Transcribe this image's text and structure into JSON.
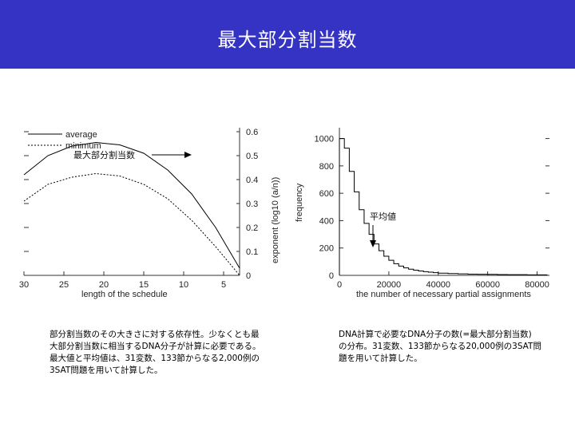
{
  "slide": {
    "title": "最大部分割当数",
    "accent_color": "#3533c3"
  },
  "left_plot": {
    "legend": [
      "average",
      "minimum"
    ],
    "annotation": "最大部分割当数",
    "xlabel": "length of the schedule",
    "ylabel": "exponent (log10 (a/n))",
    "x_ticks": [
      "30",
      "25",
      "20",
      "15",
      "10",
      "5"
    ],
    "y_ticks": [
      "0",
      "0.1",
      "0.2",
      "0.3",
      "0.4",
      "0.5",
      "0.6"
    ]
  },
  "right_plot": {
    "annotation": "平均値",
    "xlabel": "the number of necessary partial assignments",
    "ylabel": "frequency",
    "x_ticks": [
      "0",
      "20000",
      "40000",
      "60000",
      "80000"
    ],
    "y_ticks": [
      "0",
      "200",
      "400",
      "600",
      "800",
      "1000"
    ]
  },
  "chart_data": [
    {
      "type": "line",
      "title": "",
      "xlabel": "length of the schedule",
      "ylabel": "exponent (log10 (a/n))",
      "xlim": [
        30,
        3
      ],
      "ylim": [
        0,
        0.6
      ],
      "series": [
        {
          "name": "average",
          "x": [
            30,
            27,
            24,
            21,
            18,
            15,
            12,
            9,
            6,
            3
          ],
          "values": [
            0.42,
            0.5,
            0.54,
            0.555,
            0.545,
            0.51,
            0.44,
            0.34,
            0.2,
            0.03
          ]
        },
        {
          "name": "minimum",
          "x": [
            30,
            27,
            24,
            21,
            18,
            15,
            12,
            9,
            6,
            3
          ],
          "values": [
            0.31,
            0.38,
            0.41,
            0.425,
            0.415,
            0.38,
            0.32,
            0.23,
            0.12,
            0.0
          ]
        }
      ]
    },
    {
      "type": "bar",
      "title": "",
      "xlabel": "the number of necessary partial assignments",
      "ylabel": "frequency",
      "xlim": [
        0,
        85000
      ],
      "ylim": [
        0,
        1050
      ],
      "series": [
        {
          "name": "frequency",
          "x": [
            2000,
            4000,
            6000,
            8000,
            10000,
            12000,
            14000,
            16000,
            18000,
            20000,
            22000,
            24000,
            26000,
            28000,
            30000,
            32000,
            34000,
            36000,
            38000,
            40000,
            44000,
            48000,
            52000,
            56000,
            60000,
            64000,
            68000,
            72000,
            76000,
            80000,
            84000
          ],
          "values": [
            1000,
            930,
            760,
            610,
            480,
            380,
            300,
            230,
            180,
            140,
            110,
            85,
            68,
            55,
            45,
            38,
            32,
            27,
            23,
            20,
            16,
            13,
            11,
            9,
            8,
            7,
            6,
            5,
            5,
            4,
            4
          ]
        }
      ]
    }
  ],
  "captions": {
    "left": "部分割当数のその大きさに対する依存性。少なくとも最\n大部分割当数に相当するDNA分子が計算に必要である。\n最大値と平均値は、31変数、133節からなる2,000例の\n3SAT問題を用いて計算した。",
    "right": "DNA計算で必要なDNA分子の数(=最大部分割当数)\nの分布。31変数、133節からなる20,000例の3SAT問\n題を用いて計算した。"
  }
}
